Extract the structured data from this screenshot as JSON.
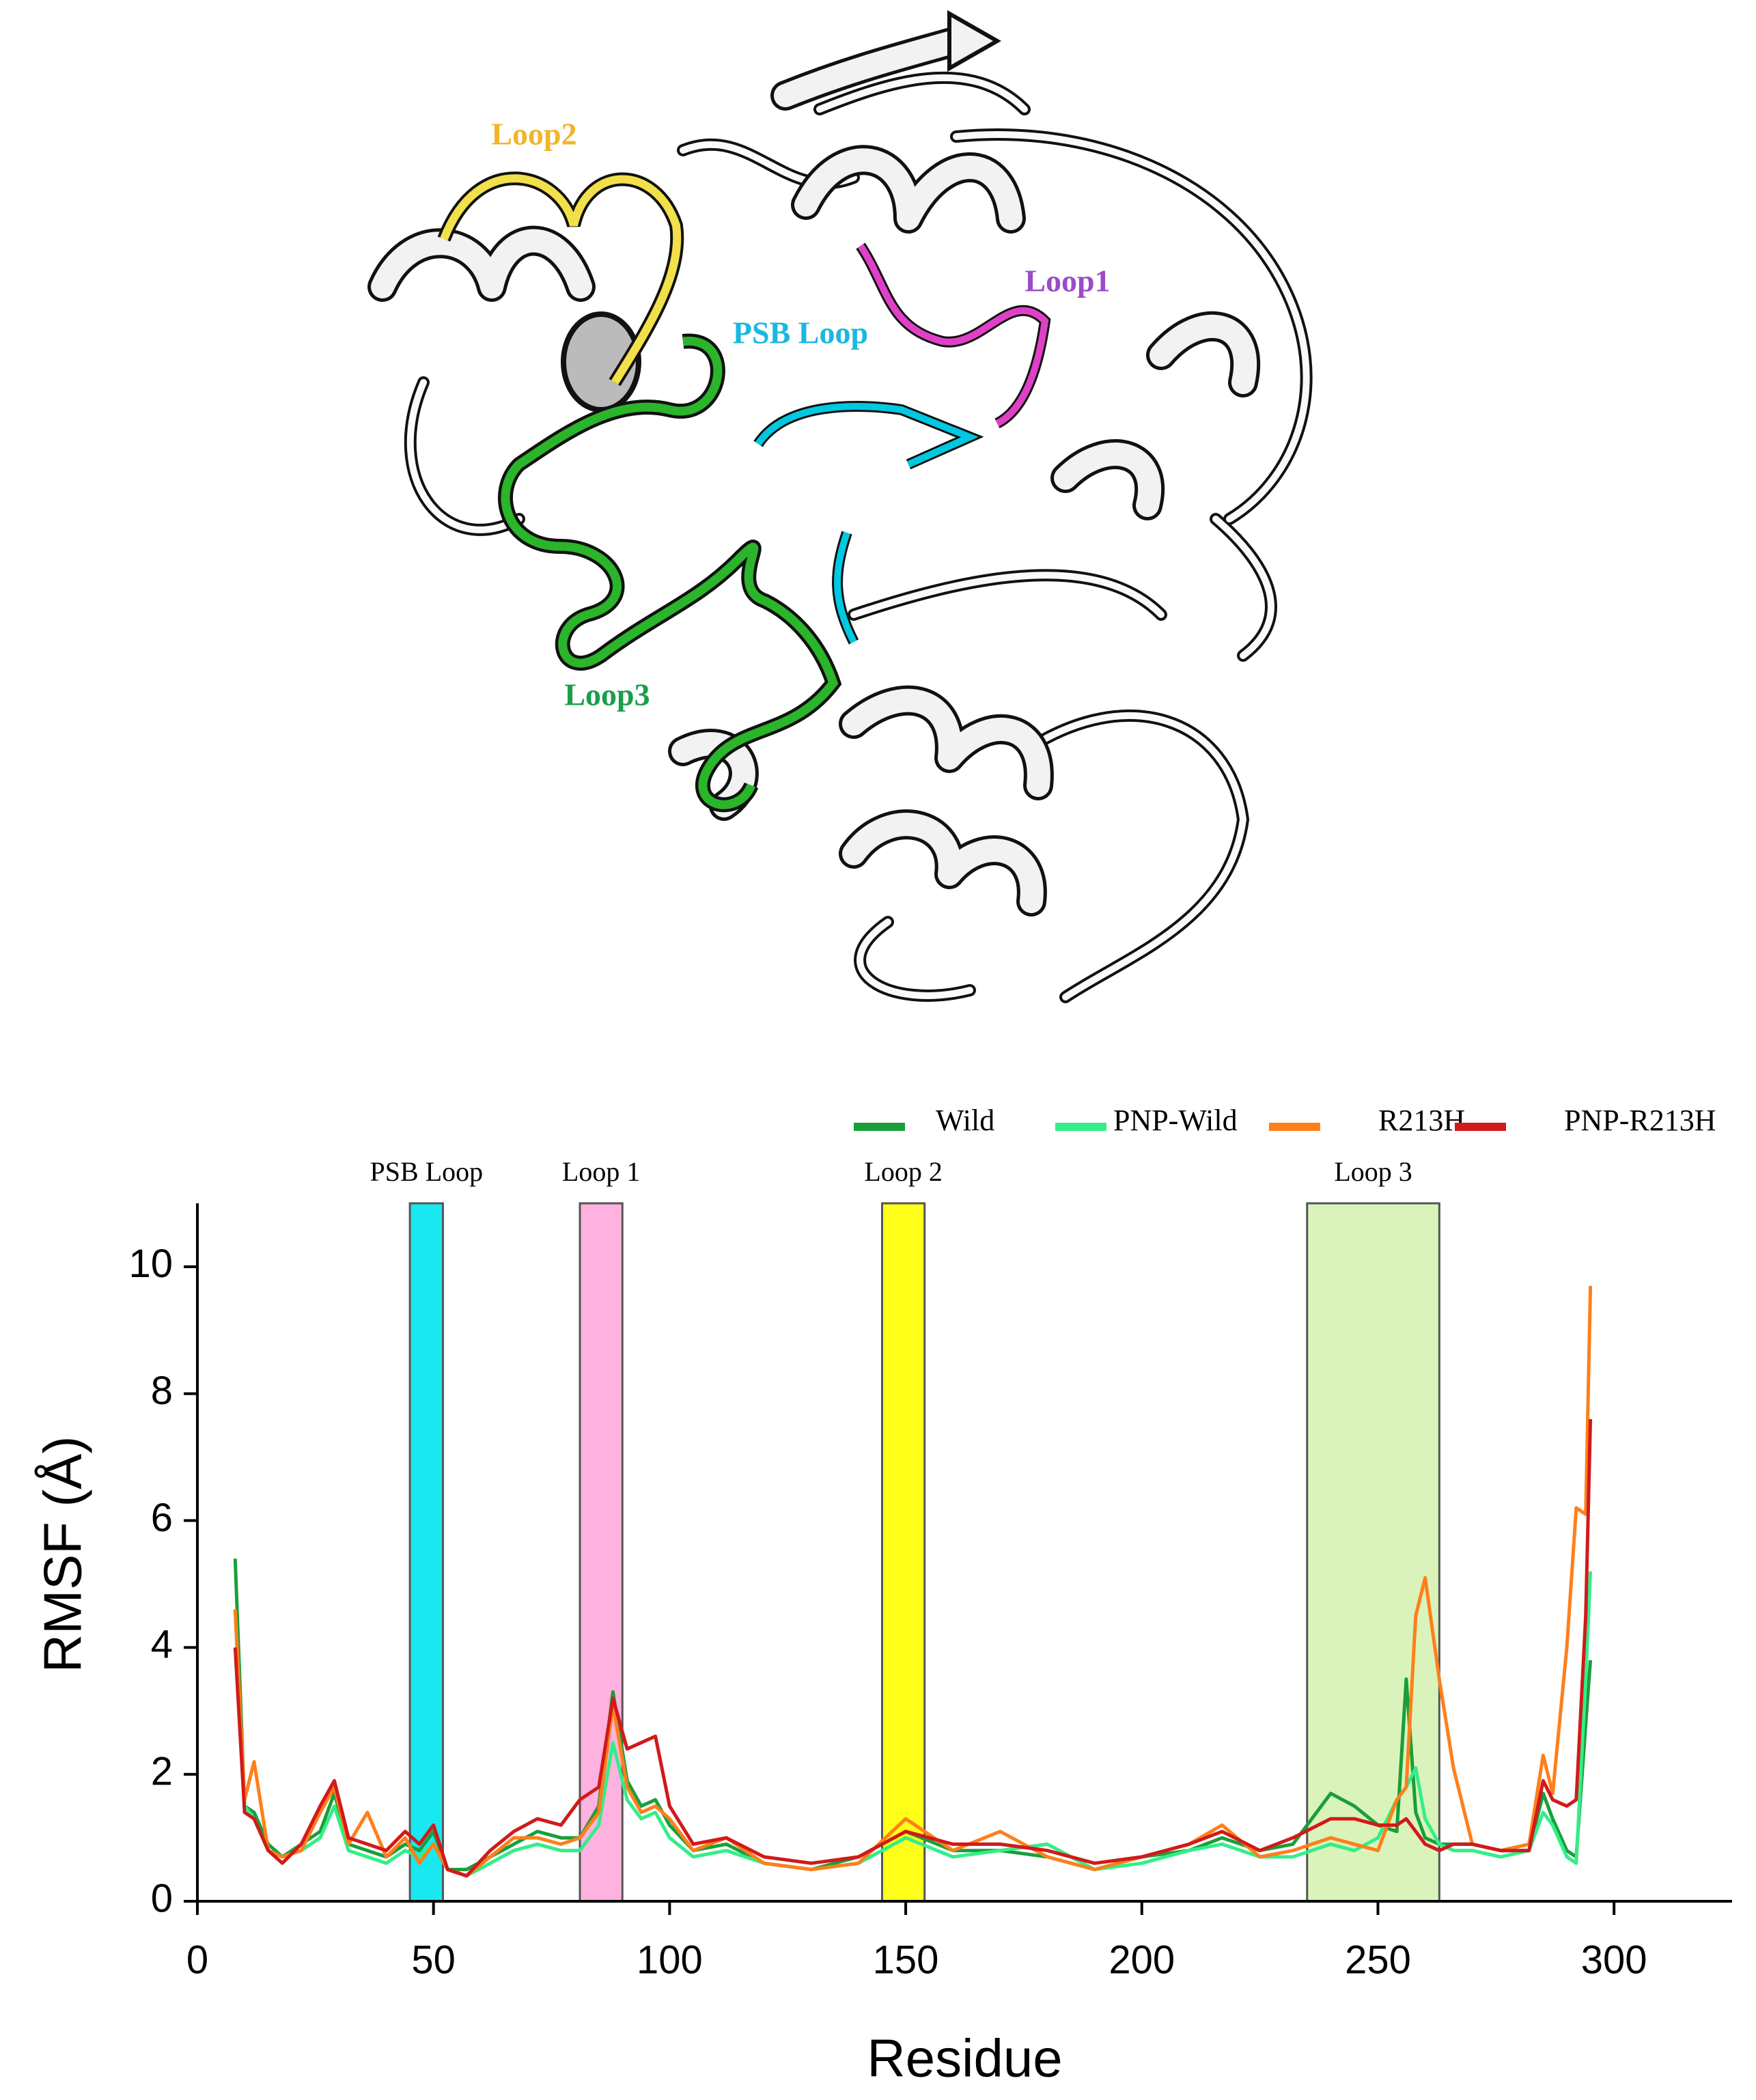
{
  "structure": {
    "labels": [
      "Loop2",
      "Loop1",
      "PSB Loop",
      "Loop3"
    ]
  },
  "chart_data": {
    "type": "line",
    "xlabel": "Residue",
    "ylabel": "RMSF (Å)",
    "xlim": [
      0,
      325
    ],
    "ylim": [
      0,
      11
    ],
    "xticks": [
      0,
      50,
      100,
      150,
      200,
      250,
      300
    ],
    "yticks": [
      0,
      2,
      4,
      6,
      8,
      10
    ],
    "regions": [
      {
        "label": "PSB Loop",
        "start": 45,
        "end": 52,
        "color": "#00e5ee"
      },
      {
        "label": "Loop 1",
        "start": 81,
        "end": 90,
        "color": "#ffaadd"
      },
      {
        "label": "Loop 2",
        "start": 145,
        "end": 154,
        "color": "#ffff00"
      },
      {
        "label": "Loop 3",
        "start": 235,
        "end": 263,
        "color": "#d6f2b4"
      }
    ],
    "x": [
      8,
      10,
      12,
      15,
      18,
      22,
      26,
      29,
      32,
      36,
      40,
      44,
      47,
      50,
      53,
      57,
      62,
      67,
      72,
      77,
      81,
      85,
      88,
      91,
      94,
      97,
      100,
      105,
      112,
      120,
      130,
      140,
      150,
      160,
      170,
      180,
      190,
      200,
      210,
      217,
      225,
      232,
      240,
      245,
      250,
      254,
      256,
      258,
      260,
      263,
      266,
      270,
      276,
      282,
      285,
      287,
      290,
      292,
      294,
      295
    ],
    "series": [
      {
        "name": "Wild",
        "color": "#1a9e3a",
        "values": [
          5.4,
          1.5,
          1.4,
          0.9,
          0.7,
          0.9,
          1.1,
          1.7,
          0.9,
          0.8,
          0.7,
          0.9,
          0.8,
          1.1,
          0.5,
          0.5,
          0.7,
          0.9,
          1.1,
          1.0,
          1.0,
          1.5,
          3.3,
          1.9,
          1.5,
          1.6,
          1.2,
          0.8,
          0.9,
          0.6,
          0.5,
          0.7,
          1.1,
          0.8,
          0.8,
          0.7,
          0.5,
          0.7,
          0.8,
          1.0,
          0.8,
          0.9,
          1.7,
          1.5,
          1.2,
          1.1,
          3.5,
          1.4,
          1.0,
          0.9,
          0.9,
          0.9,
          0.8,
          0.8,
          1.7,
          1.3,
          0.8,
          0.7,
          2.8,
          3.8
        ]
      },
      {
        "name": "PNP-Wild",
        "color": "#33ee88",
        "values": [
          4.6,
          1.5,
          1.3,
          0.8,
          0.7,
          0.8,
          1.0,
          1.5,
          0.8,
          0.7,
          0.6,
          0.8,
          0.7,
          0.9,
          0.5,
          0.4,
          0.6,
          0.8,
          0.9,
          0.8,
          0.8,
          1.2,
          2.5,
          1.6,
          1.3,
          1.4,
          1.0,
          0.7,
          0.8,
          0.6,
          0.5,
          0.6,
          1.0,
          0.7,
          0.8,
          0.9,
          0.5,
          0.6,
          0.8,
          0.9,
          0.7,
          0.7,
          0.9,
          0.8,
          1.0,
          1.6,
          1.8,
          2.1,
          1.3,
          0.9,
          0.8,
          0.8,
          0.7,
          0.8,
          1.4,
          1.2,
          0.7,
          0.6,
          3.5,
          5.2
        ]
      },
      {
        "name": "R213H",
        "color": "#ff7f1a",
        "values": [
          4.6,
          1.6,
          2.2,
          0.8,
          0.7,
          0.8,
          1.4,
          1.8,
          0.9,
          1.4,
          0.7,
          1.0,
          0.6,
          0.9,
          0.5,
          0.4,
          0.7,
          1.0,
          1.0,
          0.9,
          1.0,
          1.4,
          3.1,
          1.8,
          1.4,
          1.5,
          1.3,
          0.8,
          1.0,
          0.6,
          0.5,
          0.6,
          1.3,
          0.8,
          1.1,
          0.7,
          0.5,
          0.7,
          0.9,
          1.2,
          0.7,
          0.8,
          1.0,
          0.9,
          0.8,
          1.6,
          1.8,
          4.5,
          5.1,
          3.5,
          2.1,
          0.9,
          0.8,
          0.9,
          2.3,
          1.7,
          4.0,
          6.2,
          6.1,
          9.7
        ]
      },
      {
        "name": "PNP-R213H",
        "color": "#d11a1a",
        "values": [
          4.0,
          1.4,
          1.3,
          0.8,
          0.6,
          0.9,
          1.5,
          1.9,
          1.0,
          0.9,
          0.8,
          1.1,
          0.9,
          1.2,
          0.5,
          0.4,
          0.8,
          1.1,
          1.3,
          1.2,
          1.6,
          1.8,
          3.2,
          2.4,
          2.5,
          2.6,
          1.5,
          0.9,
          1.0,
          0.7,
          0.6,
          0.7,
          1.1,
          0.9,
          0.9,
          0.8,
          0.6,
          0.7,
          0.9,
          1.1,
          0.8,
          1.0,
          1.3,
          1.3,
          1.2,
          1.2,
          1.3,
          1.1,
          0.9,
          0.8,
          0.9,
          0.9,
          0.8,
          0.8,
          1.9,
          1.6,
          1.5,
          1.6,
          4.5,
          7.6
        ]
      }
    ]
  }
}
